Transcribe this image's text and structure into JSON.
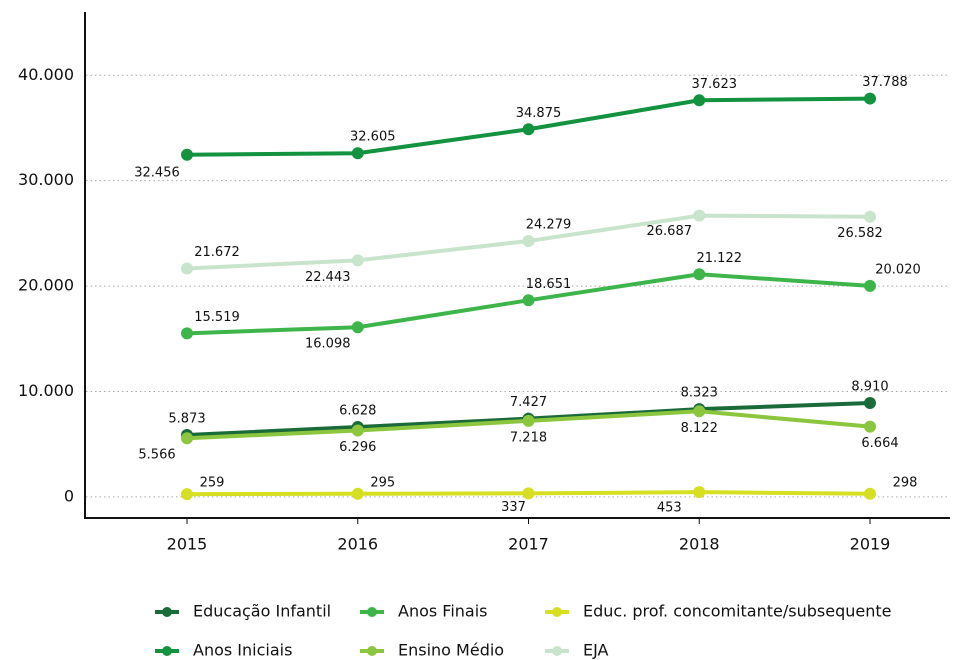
{
  "chart_data": {
    "type": "line",
    "categories": [
      "2015",
      "2016",
      "2017",
      "2018",
      "2019"
    ],
    "series": [
      {
        "name": "Educação Infantil",
        "color": "#1b6b3a",
        "values": [
          5873,
          6628,
          7427,
          8323,
          8910
        ],
        "value_labels": [
          "5.873",
          "6.628",
          "7.427",
          "8.323",
          "8.910"
        ]
      },
      {
        "name": "Anos Iniciais",
        "color": "#13923f",
        "values": [
          32456,
          32605,
          34875,
          37623,
          37788
        ],
        "value_labels": [
          "32.456",
          "32.605",
          "34.875",
          "37.623",
          "37.788"
        ]
      },
      {
        "name": "Anos Finais",
        "color": "#3db54a",
        "values": [
          15519,
          16098,
          18651,
          21122,
          20020
        ],
        "value_labels": [
          "15.519",
          "16.098",
          "18.651",
          "21.122",
          "20.020"
        ]
      },
      {
        "name": "Ensino Médio",
        "color": "#8cc63e",
        "values": [
          5566,
          6296,
          7218,
          8122,
          6664
        ],
        "value_labels": [
          "5.566",
          "6.296",
          "7.218",
          "8.122",
          "6.664"
        ]
      },
      {
        "name": "Educ. prof. concomitante/subsequente",
        "color": "#d7df23",
        "values": [
          259,
          295,
          337,
          453,
          298
        ]
      },
      {
        "name": "EJA",
        "color": "#c9e4cc",
        "values": [
          21672,
          22443,
          24279,
          26687,
          26582
        ],
        "value_labels": [
          "21.672",
          "22.443",
          "24.279",
          "26.687",
          "26.582"
        ]
      }
    ],
    "ylim": [
      -2000,
      46000
    ],
    "yticks": [
      0,
      {
        "value": 10000,
        "label": "10.000"
      },
      {
        "value": 20000,
        "label": "20.000"
      },
      {
        "value": 30000,
        "label": "30.000"
      },
      {
        "value": 40000,
        "label": "40.000"
      }
    ],
    "grid": true,
    "legend": "bottom"
  }
}
